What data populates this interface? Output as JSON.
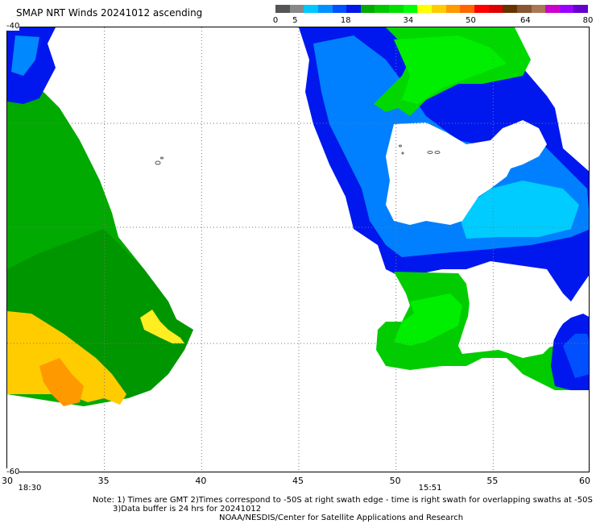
{
  "title": "SMAP NRT Winds 20241012 ascending",
  "colorbar": {
    "labels": [
      "0",
      "5",
      "18",
      "34",
      "50",
      "64",
      "80"
    ],
    "label_values": [
      0,
      5,
      18,
      34,
      50,
      64,
      80
    ],
    "colors": [
      "#555555",
      "#888888",
      "#00c8ff",
      "#0090ff",
      "#0050ff",
      "#0018e8",
      "#00aa00",
      "#00c800",
      "#00e000",
      "#00ff00",
      "#ffff00",
      "#ffcc00",
      "#ff9900",
      "#ff6600",
      "#ff0000",
      "#dd0000",
      "#663300",
      "#885533",
      "#aa7755",
      "#cc00cc",
      "#9900ff",
      "#6600cc"
    ],
    "color_notes": {
      "white_background": "#ffffff"
    }
  },
  "axes": {
    "x_ticks": [
      "30",
      "35",
      "40",
      "45",
      "50",
      "55",
      "60"
    ],
    "x_values": [
      30,
      35,
      40,
      45,
      50,
      55,
      60
    ],
    "y_ticks": [
      "-40",
      "-60"
    ],
    "y_values": [
      -40,
      -60
    ],
    "x_range": [
      30,
      60
    ],
    "y_range": [
      -60,
      -40
    ],
    "grid": "dotted"
  },
  "swath_times": [
    {
      "label": "18:30",
      "lon": 31.2
    },
    {
      "label": "15:51",
      "lon": 51.8
    }
  ],
  "notes": [
    "Note: 1) Times are GMT 2)Times correspond to -50S at right swath edge - time is right swath for overlapping swaths at -50S",
    "3)Data buffer is 24 hrs for 20241012",
    "NOAA/NESDIS/Center for Satellite Applications and Research"
  ],
  "colors": {
    "dark_green": "#00aa00",
    "green": "#00cc00",
    "bright_green": "#00ee00",
    "blue": "#0018ee",
    "light_blue": "#0099ff",
    "cyan": "#00ccff",
    "yellow": "#ffdd00",
    "orange": "#ff9900"
  }
}
